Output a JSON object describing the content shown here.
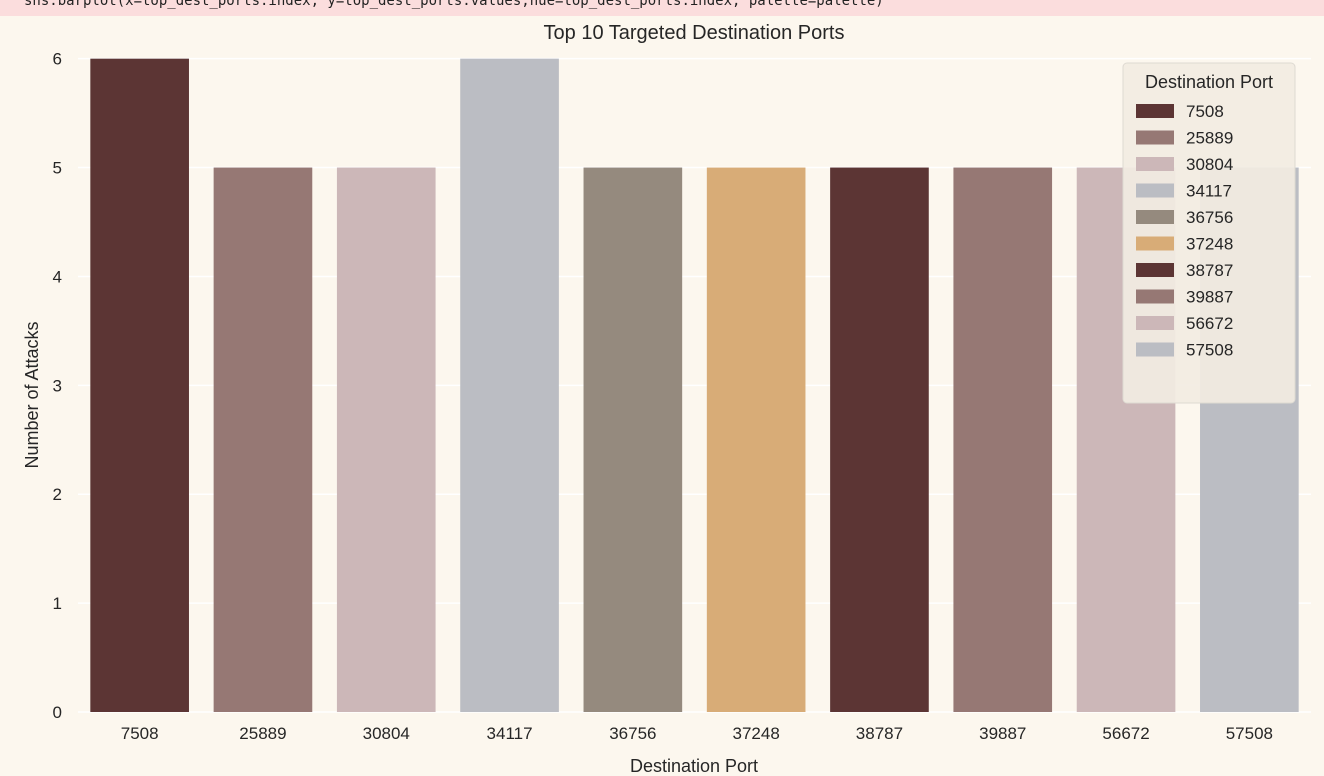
{
  "notebook": {
    "code_line": "sns.barplot(x=top_dest_ports.index, y=top_dest_ports.values,hue=top_dest_ports.index, palette=palette)"
  },
  "chart_data": {
    "type": "bar",
    "title": "Top 10 Targeted Destination Ports",
    "xlabel": "Destination Port",
    "ylabel": "Number of Attacks",
    "categories": [
      "7508",
      "25889",
      "30804",
      "34117",
      "36756",
      "37248",
      "38787",
      "39887",
      "56672",
      "57508"
    ],
    "values": [
      6,
      5,
      5,
      6,
      5,
      5,
      5,
      5,
      5,
      5
    ],
    "colors": [
      "#5c3534",
      "#967874",
      "#ccb7b8",
      "#bbbdc3",
      "#958a7e",
      "#d8ac77",
      "#5c3534",
      "#967874",
      "#ccb7b8",
      "#bbbdc3"
    ],
    "ylim": [
      0,
      6.3
    ],
    "yticks": [
      0,
      1,
      2,
      3,
      4,
      5,
      6
    ],
    "grid": true,
    "background": "#fcf7ee",
    "legend": {
      "title": "Destination Port",
      "placement": "top-right",
      "entries": [
        "7508",
        "25889",
        "30804",
        "34117",
        "36756",
        "37248",
        "38787",
        "39887",
        "56672",
        "57508"
      ]
    }
  }
}
